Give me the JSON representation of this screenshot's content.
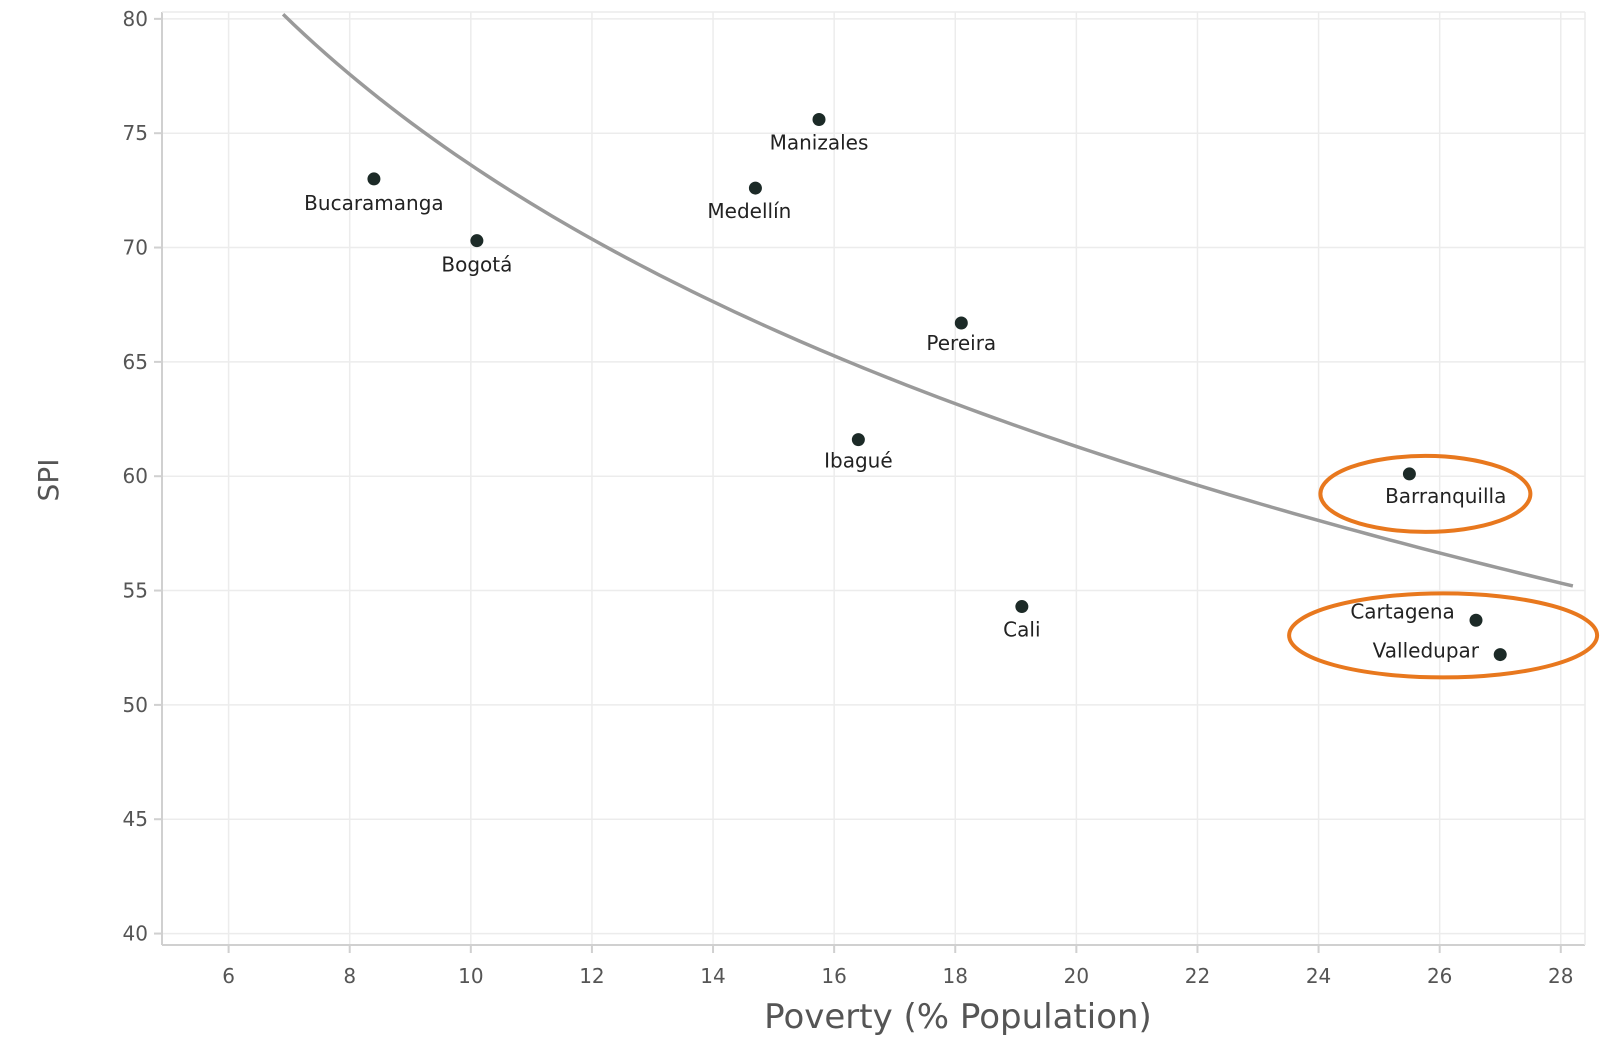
{
  "chart_data": {
    "type": "scatter",
    "title": "",
    "xlabel": "Poverty (% Population)",
    "ylabel": "SPI",
    "xlim": [
      4.9,
      28.4
    ],
    "ylim": [
      39.5,
      80.3
    ],
    "xticks": [
      6,
      8,
      10,
      12,
      14,
      16,
      18,
      20,
      22,
      24,
      26,
      28
    ],
    "yticks": [
      40,
      45,
      50,
      55,
      60,
      65,
      70,
      75,
      80
    ],
    "grid": true,
    "points": [
      {
        "label": "Manizales",
        "x": 15.75,
        "y": 75.6
      },
      {
        "label": "Bucaramanga",
        "x": 8.4,
        "y": 73.0
      },
      {
        "label": "Medellín",
        "x": 14.7,
        "y": 72.6
      },
      {
        "label": "Bogotá",
        "x": 10.1,
        "y": 70.3
      },
      {
        "label": "Pereira",
        "x": 18.1,
        "y": 66.7
      },
      {
        "label": "Ibagué",
        "x": 16.4,
        "y": 61.6
      },
      {
        "label": "Barranquilla",
        "x": 25.5,
        "y": 60.1
      },
      {
        "label": "Cali",
        "x": 19.1,
        "y": 54.3
      },
      {
        "label": "Cartagena",
        "x": 26.6,
        "y": 53.7
      },
      {
        "label": "Valledupar",
        "x": 27.0,
        "y": 52.2
      }
    ],
    "trendline": {
      "type": "logarithmic",
      "x_range": [
        6.9,
        28.2
      ],
      "points": [
        [
          6.9,
          80.2
        ],
        [
          10,
          73.4
        ],
        [
          12,
          70.2
        ],
        [
          16,
          65.2
        ],
        [
          20,
          61.4
        ],
        [
          24,
          58.2
        ],
        [
          28.2,
          55.2
        ]
      ]
    },
    "highlighted": [
      [
        "Barranquilla"
      ],
      [
        "Cartagena",
        "Valledupar"
      ]
    ],
    "colors": {
      "point": "#1c2a27",
      "trendline": "#9a9a9a",
      "highlight": "#e8781e",
      "grid": "#ececec",
      "axis": "#d0d0d0",
      "tick_text": "#555555"
    }
  }
}
